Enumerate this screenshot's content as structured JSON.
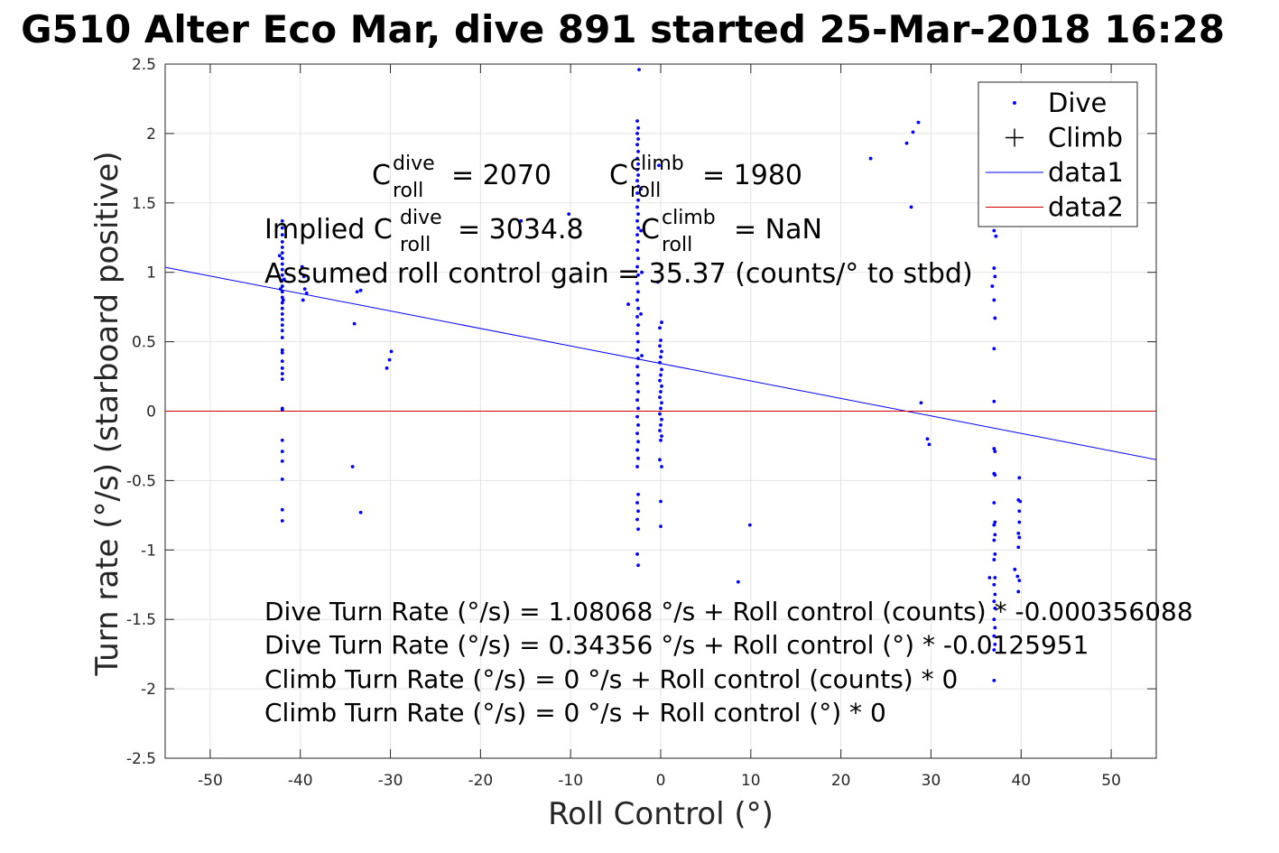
{
  "chart_data": {
    "type": "scatter",
    "title": "G510 Alter Eco Mar, dive 891 started 25-Mar-2018 16:28",
    "xlabel": "Roll Control (°)",
    "ylabel": "Turn rate (°/s) (starboard positive)",
    "xlim": [
      -55,
      55
    ],
    "ylim": [
      -2.5,
      2.5
    ],
    "x_ticks": [
      "-50",
      "-40",
      "-30",
      "-20",
      "-10",
      "0",
      "10",
      "20",
      "30",
      "40",
      "50"
    ],
    "x_tick_values": [
      -50,
      -40,
      -30,
      -20,
      -10,
      0,
      10,
      20,
      30,
      40,
      50
    ],
    "y_ticks": [
      "2.5",
      "2",
      "1.5",
      "1",
      "0.5",
      "0",
      "-0.5",
      "-1",
      "-1.5",
      "-2",
      "-2.5"
    ],
    "y_tick_values": [
      2.5,
      2,
      1.5,
      1,
      0.5,
      0,
      -0.5,
      -1,
      -1.5,
      -2,
      -2.5
    ],
    "grid": true,
    "legend_position": "top-right",
    "legend": [
      {
        "name": "Dive",
        "marker": "dot",
        "color": "#0000ff"
      },
      {
        "name": "Climb",
        "marker": "plus",
        "color": "#000000"
      },
      {
        "name": "data1",
        "marker": "line",
        "color": "#0000ff"
      },
      {
        "name": "data2",
        "marker": "line",
        "color": "#d00000"
      }
    ],
    "series": [
      {
        "name": "Dive",
        "color": "#0000ff",
        "points": [
          [
            -42,
            1.37
          ],
          [
            -42,
            1.32
          ],
          [
            -42,
            1.27
          ],
          [
            -42,
            1.22
          ],
          [
            -42,
            1.18
          ],
          [
            -42,
            1.14
          ],
          [
            -42,
            1.1
          ],
          [
            -42,
            1.06
          ],
          [
            -42,
            1.02
          ],
          [
            -42,
            0.98
          ],
          [
            -42,
            0.94
          ],
          [
            -42,
            0.9
          ],
          [
            -42,
            0.86
          ],
          [
            -42,
            0.82
          ],
          [
            -42,
            0.78
          ],
          [
            -42,
            0.74
          ],
          [
            -42,
            0.7
          ],
          [
            -42,
            0.66
          ],
          [
            -42,
            0.62
          ],
          [
            -42,
            0.58
          ],
          [
            -42,
            0.53
          ],
          [
            -42,
            0.44
          ],
          [
            -42,
            0.42
          ],
          [
            -42,
            0.36
          ],
          [
            -42,
            0.31
          ],
          [
            -42,
            0.27
          ],
          [
            -42,
            0.23
          ],
          [
            -42,
            0.02
          ],
          [
            -42,
            0.01
          ],
          [
            -42,
            -0.21
          ],
          [
            -42,
            -0.29
          ],
          [
            -42,
            -0.36
          ],
          [
            -42,
            -0.49
          ],
          [
            -42,
            -0.71
          ],
          [
            -42,
            -0.79
          ],
          [
            -42.3,
            1.12
          ],
          [
            -41.8,
            0.95
          ],
          [
            -42.2,
            0.88
          ],
          [
            -41.9,
            0.8
          ],
          [
            -39.8,
            1.04
          ],
          [
            -39.6,
            0.97
          ],
          [
            -39.5,
            0.88
          ],
          [
            -39.3,
            0.85
          ],
          [
            -39.7,
            0.8
          ],
          [
            -34,
            0.63
          ],
          [
            -33.7,
            0.86
          ],
          [
            -33.3,
            0.87
          ],
          [
            -34.2,
            -0.4
          ],
          [
            -33.3,
            -0.73
          ],
          [
            -30.4,
            0.31
          ],
          [
            -30.1,
            0.37
          ],
          [
            -29.9,
            0.43
          ],
          [
            -15.5,
            1.37
          ],
          [
            -10.2,
            1.42
          ],
          [
            -3.6,
            0.77
          ],
          [
            -2.4,
            2.46
          ],
          [
            -2.6,
            2.09
          ],
          [
            -2.5,
            2.04
          ],
          [
            -2.6,
            2.0
          ],
          [
            -2.5,
            1.96
          ],
          [
            -2.6,
            1.92
          ],
          [
            -2.5,
            1.87
          ],
          [
            -2.6,
            1.82
          ],
          [
            -2.5,
            1.78
          ],
          [
            -2.6,
            1.74
          ],
          [
            -2.5,
            1.7
          ],
          [
            -2.6,
            1.66
          ],
          [
            -2.5,
            1.62
          ],
          [
            -2.6,
            1.57
          ],
          [
            -2.5,
            1.52
          ],
          [
            -2.6,
            1.47
          ],
          [
            -2.5,
            1.42
          ],
          [
            -2.6,
            1.37
          ],
          [
            -2.5,
            1.32
          ],
          [
            -2.6,
            1.27
          ],
          [
            -2.5,
            1.22
          ],
          [
            -2.6,
            1.16
          ],
          [
            -2.5,
            1.1
          ],
          [
            -2.6,
            1.04
          ],
          [
            -2.5,
            0.98
          ],
          [
            -2.6,
            0.92
          ],
          [
            -2.5,
            0.86
          ],
          [
            -2.6,
            0.8
          ],
          [
            -2.5,
            0.74
          ],
          [
            -2.6,
            0.68
          ],
          [
            -2.5,
            0.62
          ],
          [
            -2.6,
            0.56
          ],
          [
            -2.5,
            0.5
          ],
          [
            -2.6,
            0.44
          ],
          [
            -2.5,
            0.38
          ],
          [
            -2.6,
            0.32
          ],
          [
            -2.5,
            0.26
          ],
          [
            -2.6,
            0.2
          ],
          [
            -2.5,
            0.14
          ],
          [
            -2.6,
            0.08
          ],
          [
            -2.5,
            0.02
          ],
          [
            -2.6,
            -0.04
          ],
          [
            -2.5,
            -0.1
          ],
          [
            -2.6,
            -0.16
          ],
          [
            -2.5,
            -0.22
          ],
          [
            -2.6,
            -0.28
          ],
          [
            -2.5,
            -0.34
          ],
          [
            -2.6,
            -0.4
          ],
          [
            -2.5,
            -0.6
          ],
          [
            -2.6,
            -0.66
          ],
          [
            -2.5,
            -0.72
          ],
          [
            -2.6,
            -0.78
          ],
          [
            -2.5,
            -0.85
          ],
          [
            -2.6,
            -1.03
          ],
          [
            -2.5,
            -1.11
          ],
          [
            -2.2,
            1.6
          ],
          [
            -2.2,
            1.3
          ],
          [
            -2.1,
            1.0
          ],
          [
            -2.2,
            0.7
          ],
          [
            -2.1,
            0.4
          ],
          [
            -0.2,
            1.77
          ],
          [
            -0.3,
            0.93
          ],
          [
            0.1,
            0.64
          ],
          [
            -0.1,
            0.6
          ],
          [
            0,
            0.51
          ],
          [
            -0.1,
            0.47
          ],
          [
            0.1,
            0.43
          ],
          [
            0,
            0.39
          ],
          [
            -0.1,
            0.35
          ],
          [
            0.1,
            0.3
          ],
          [
            0,
            0.26
          ],
          [
            -0.1,
            0.22
          ],
          [
            0.1,
            0.18
          ],
          [
            0,
            0.14
          ],
          [
            -0.1,
            0.1
          ],
          [
            0.1,
            0.06
          ],
          [
            0,
            0.02
          ],
          [
            -0.1,
            -0.02
          ],
          [
            0.1,
            -0.06
          ],
          [
            0,
            -0.1
          ],
          [
            -0.1,
            -0.14
          ],
          [
            0.1,
            -0.18
          ],
          [
            0,
            -0.21
          ],
          [
            -0.1,
            -0.35
          ],
          [
            0.1,
            -0.4
          ],
          [
            0,
            -0.65
          ],
          [
            0,
            -0.83
          ],
          [
            9.9,
            -0.82
          ],
          [
            8.6,
            -1.23
          ],
          [
            23.3,
            1.82
          ],
          [
            27.3,
            1.93
          ],
          [
            27.8,
            1.47
          ],
          [
            28,
            2.01
          ],
          [
            28.6,
            2.08
          ],
          [
            28.9,
            0.06
          ],
          [
            29.6,
            -0.2
          ],
          [
            29.8,
            -0.24
          ],
          [
            37,
            1.3
          ],
          [
            37.2,
            1.26
          ],
          [
            37,
            1.03
          ],
          [
            37.1,
            0.97
          ],
          [
            36.8,
            0.9
          ],
          [
            37,
            0.8
          ],
          [
            37.1,
            0.67
          ],
          [
            37,
            0.45
          ],
          [
            37,
            0.07
          ],
          [
            37,
            -0.27
          ],
          [
            37.1,
            -0.29
          ],
          [
            37,
            -0.45
          ],
          [
            37.1,
            -0.46
          ],
          [
            37,
            -0.66
          ],
          [
            37.1,
            -0.8
          ],
          [
            37,
            -0.82
          ],
          [
            37.1,
            -0.89
          ],
          [
            37,
            -0.93
          ],
          [
            37.1,
            -1.03
          ],
          [
            37,
            -1.07
          ],
          [
            37.1,
            -1.2
          ],
          [
            37,
            -1.25
          ],
          [
            37.1,
            -1.32
          ],
          [
            37,
            -1.37
          ],
          [
            37.1,
            -1.42
          ],
          [
            37,
            -1.5
          ],
          [
            37.1,
            -1.56
          ],
          [
            37,
            -1.62
          ],
          [
            37.1,
            -1.68
          ],
          [
            37,
            -1.72
          ],
          [
            37,
            -1.94
          ],
          [
            36.5,
            -1.2
          ],
          [
            39.8,
            -0.48
          ],
          [
            39.7,
            -0.64
          ],
          [
            39.9,
            -0.65
          ],
          [
            39.8,
            -0.72
          ],
          [
            39.8,
            -0.8
          ],
          [
            39.7,
            -0.88
          ],
          [
            39.8,
            -0.91
          ],
          [
            39.7,
            -0.98
          ],
          [
            39.3,
            -1.14
          ],
          [
            39.6,
            -1.19
          ],
          [
            39.8,
            -1.22
          ],
          [
            39.7,
            -1.3
          ]
        ]
      },
      {
        "name": "Climb",
        "color": "#000000",
        "points": []
      }
    ],
    "lines": [
      {
        "name": "data1",
        "color": "#0000ff",
        "x": [
          -55,
          55
        ],
        "y": [
          1.0363,
          -0.3492
        ]
      },
      {
        "name": "data2",
        "color": "#d00000",
        "x": [
          -55,
          55
        ],
        "y": [
          0,
          0
        ]
      }
    ],
    "annotations": {
      "c_dive_prefix": "C",
      "c_dive_sup": "dive",
      "c_dive_sub": "roll",
      "c_dive_value": "= 2070",
      "c_climb_prefix": "C",
      "c_climb_sup": "climb",
      "c_climb_sub": "roll",
      "c_climb_value": "= 1980",
      "implied_prefix": "Implied C",
      "implied_dive_sup": "dive",
      "implied_dive_sub": "roll",
      "implied_dive_value": "= 3034.8",
      "implied_climb_prefix": "C",
      "implied_climb_sup": "climb",
      "implied_climb_sub": "roll",
      "implied_climb_value": "= NaN",
      "gain_text": "Assumed roll control gain = 35.37 (counts/° to stbd)",
      "eq1": "Dive Turn Rate (°/s) = 1.08068 °/s + Roll control (counts) * -0.000356088",
      "eq2": "Dive Turn Rate (°/s) = 0.34356 °/s + Roll control (°) * -0.0125951",
      "eq3": "Climb Turn Rate (°/s) = 0 °/s + Roll control (counts) * 0",
      "eq4": "Climb Turn Rate (°/s) = 0 °/s + Roll control (°) * 0"
    }
  }
}
